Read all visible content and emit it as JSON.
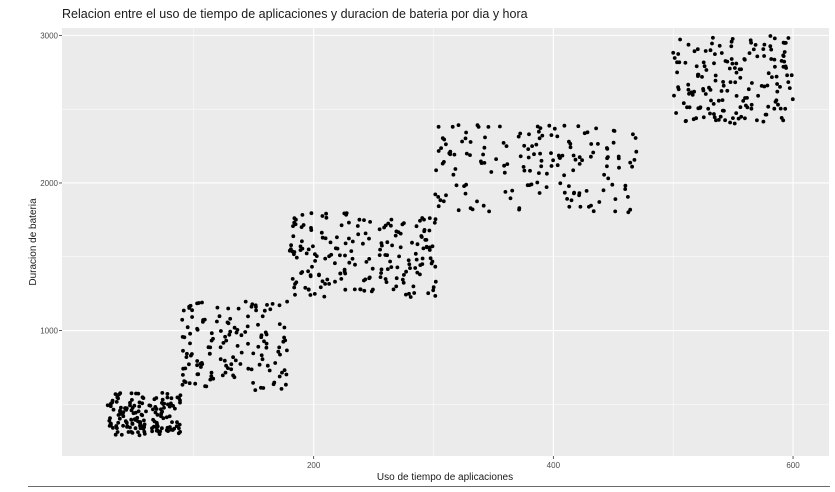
{
  "chart_data": {
    "type": "scatter",
    "title": "Relacion entre el uso de tiempo de aplicaciones y duracion de bateria por dia y hora",
    "xlabel": "Uso de tiempo de aplicaciones",
    "ylabel": "Duracion de bateria",
    "xlim": [
      -10,
      630
    ],
    "ylim": [
      150,
      3050
    ],
    "xticks": [
      200,
      400,
      600
    ],
    "yticks": [
      1000,
      2000,
      3000
    ],
    "grid": true,
    "legend": "none",
    "point_color": "#000000",
    "panel_background": "#ebebeb",
    "series": [
      {
        "clusters": [
          {
            "x_range": [
              28,
              89
            ],
            "y_range": [
              290,
              580
            ],
            "count": 160
          },
          {
            "x_range": [
              90,
              178
            ],
            "y_range": [
              580,
              1200
            ],
            "count": 145
          },
          {
            "x_range": [
              180,
              250
            ],
            "y_range": [
              1220,
              1800
            ],
            "count": 110
          },
          {
            "x_range": [
              255,
              302
            ],
            "y_range": [
              1220,
              1780
            ],
            "count": 85
          },
          {
            "x_range": [
              300,
              360
            ],
            "y_range": [
              1800,
              2400
            ],
            "count": 55
          },
          {
            "x_range": [
              360,
              470
            ],
            "y_range": [
              1800,
              2390
            ],
            "count": 110
          },
          {
            "x_range": [
              500,
              600
            ],
            "y_range": [
              2400,
              3000
            ],
            "count": 165
          }
        ]
      }
    ]
  }
}
